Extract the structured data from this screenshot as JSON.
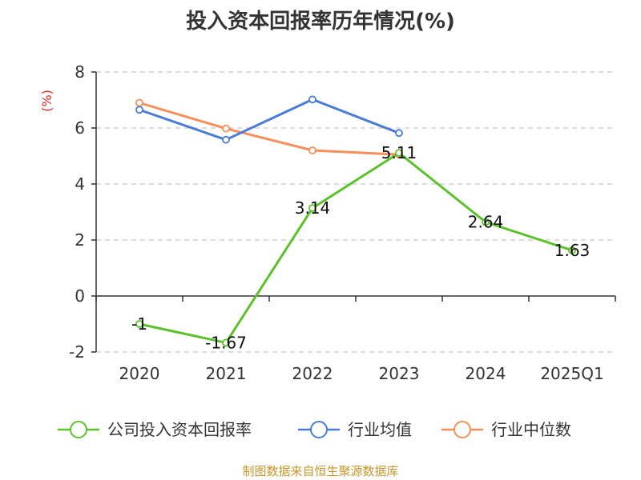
{
  "chart_data": {
    "type": "line",
    "title": "投入资本回报率历年情况(%)",
    "ylabel": "(%)",
    "categories": [
      "2020",
      "2021",
      "2022",
      "2023",
      "2024",
      "2025Q1"
    ],
    "ylim": [
      -2,
      8
    ],
    "yticks": [
      8,
      6,
      4,
      2,
      0,
      -2
    ],
    "grid": true,
    "legend_position": "bottom",
    "series": [
      {
        "name": "公司投入资本回报率",
        "color": "#5cc22c",
        "values": [
          -1,
          -1.67,
          3.14,
          5.11,
          2.64,
          1.63
        ],
        "labels": [
          "-1",
          "-1.67",
          "3.14",
          "5.11",
          "2.64",
          "1.63"
        ]
      },
      {
        "name": "行业均值",
        "color": "#4a7bd8",
        "values": [
          6.65,
          5.58,
          7.02,
          5.82,
          null,
          null
        ]
      },
      {
        "name": "行业中位数",
        "color": "#f78f5a",
        "values": [
          6.9,
          5.98,
          5.2,
          5.05,
          null,
          null
        ]
      }
    ]
  },
  "source": "制图数据来自恒生聚源数据库"
}
